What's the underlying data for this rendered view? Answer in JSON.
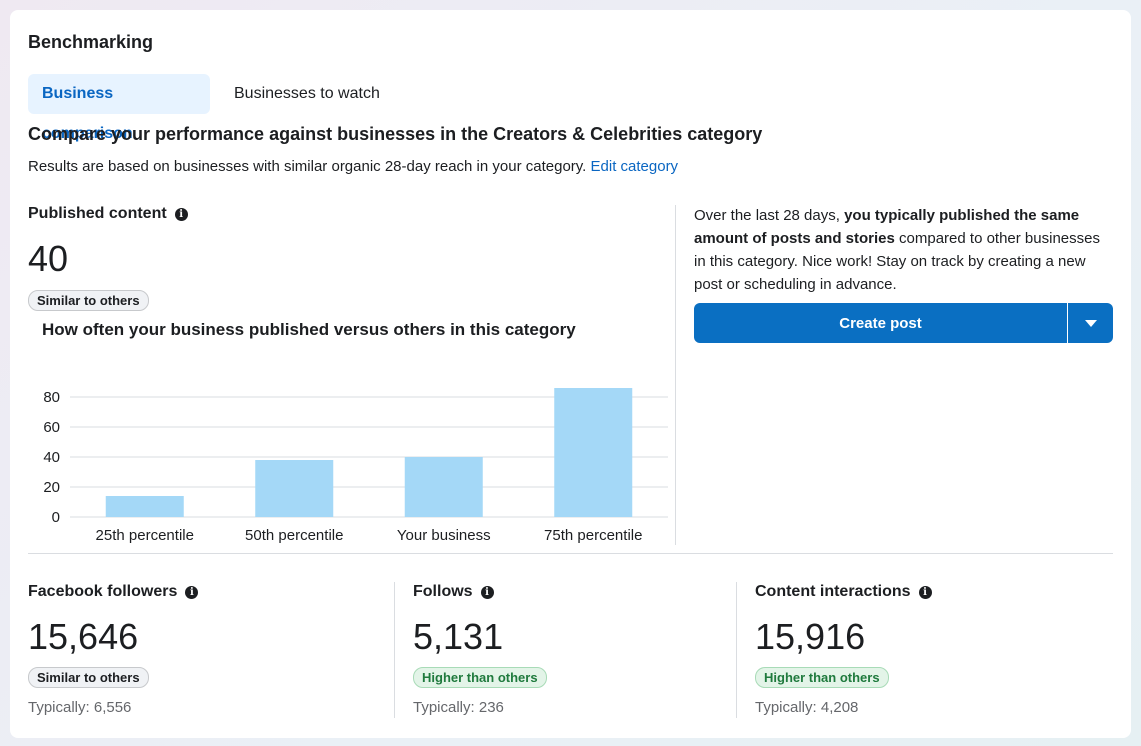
{
  "header": {
    "title": "Benchmarking"
  },
  "tabs": [
    {
      "label": "Business comparison",
      "active": true
    },
    {
      "label": "Businesses to watch",
      "active": false
    }
  ],
  "intro": {
    "title": "Compare your performance against businesses in the Creators & Celebrities category",
    "description": "Results are based on businesses with similar organic 28-day reach in your category.",
    "link_label": "Edit category"
  },
  "published": {
    "label": "Published content",
    "value": "40",
    "badge": "Similar to others",
    "chart_title": "How often your business published versus others in this category"
  },
  "insight": {
    "prefix": "Over the last 28 days, ",
    "bold": "you typically published the same amount of posts and stories",
    "suffix": " compared to other businesses in this category. Nice work! Stay on track by creating a new post or scheduling in advance.",
    "button_label": "Create post"
  },
  "metrics": [
    {
      "label": "Facebook followers",
      "value": "15,646",
      "badge": "Similar to others",
      "badge_type": "neutral",
      "typical": "Typically: 6,556"
    },
    {
      "label": "Follows",
      "value": "5,131",
      "badge": "Higher than others",
      "badge_type": "positive",
      "typical": "Typically: 236"
    },
    {
      "label": "Content interactions",
      "value": "15,916",
      "badge": "Higher than others",
      "badge_type": "positive",
      "typical": "Typically: 4,208"
    }
  ],
  "colors": {
    "accent": "#0a6fc2",
    "bar": "#a4d8f7",
    "positive": "#1f7a3d"
  },
  "chart_data": {
    "type": "bar",
    "categories": [
      "25th percentile",
      "50th percentile",
      "Your business",
      "75th percentile"
    ],
    "values": [
      14,
      38,
      40,
      86
    ],
    "yticks": [
      0,
      20,
      40,
      60,
      80
    ],
    "ylim": [
      0,
      86
    ],
    "title": "How often your business published versus others in this category",
    "xlabel": "",
    "ylabel": "",
    "grid": true
  }
}
